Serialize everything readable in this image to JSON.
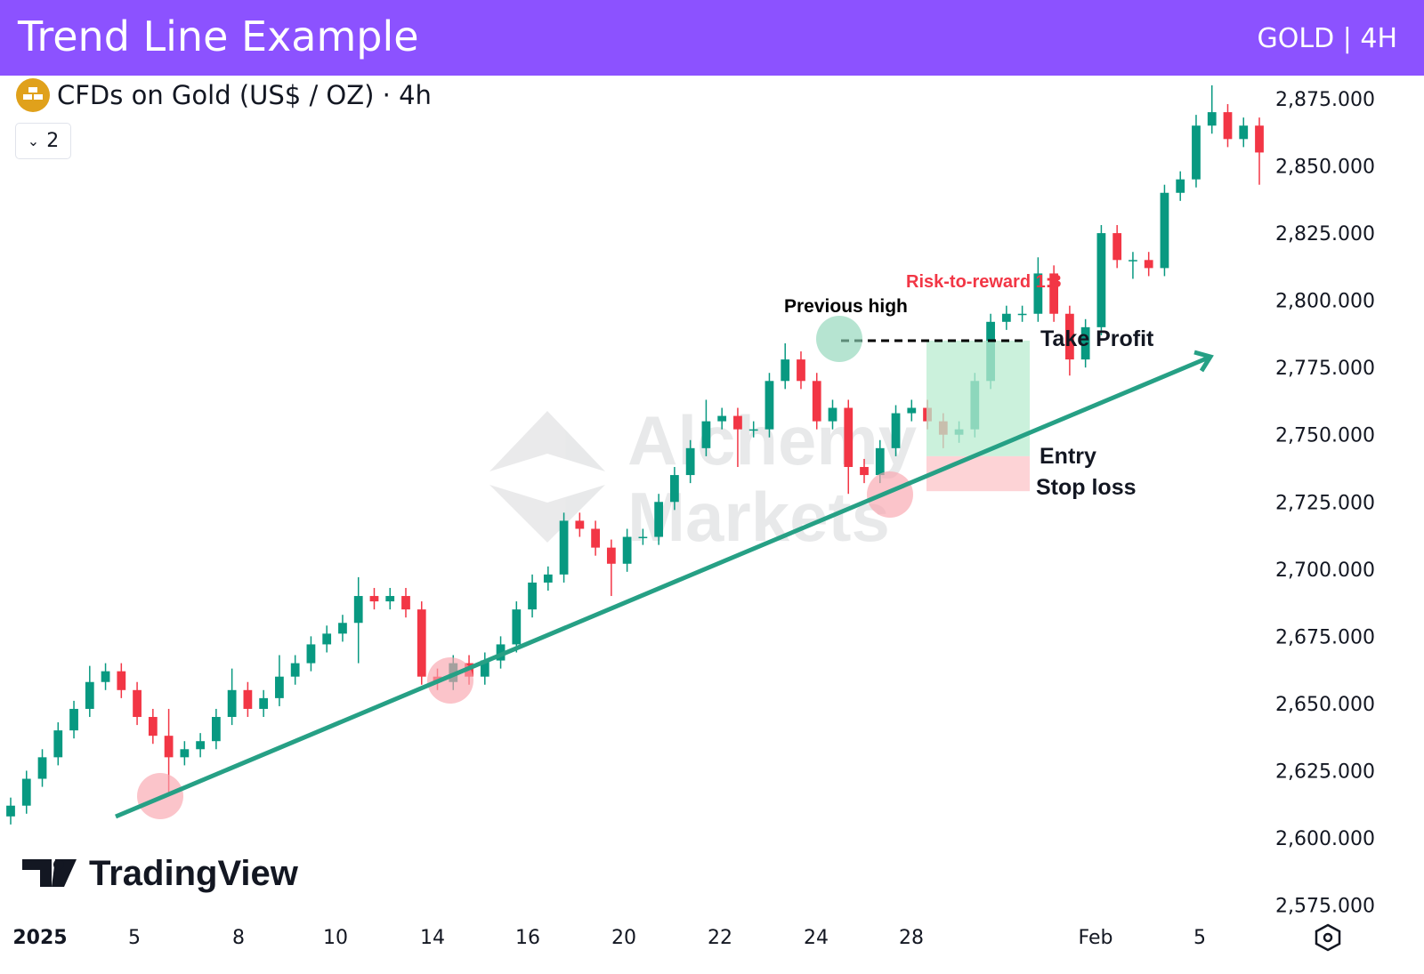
{
  "header": {
    "title": "Trend Line Example",
    "tag": "GOLD | 4H"
  },
  "symbol": {
    "name": "CFDs on Gold (US$ / OZ) · 4h",
    "collapse_count": "2"
  },
  "logo": {
    "text": "TradingView"
  },
  "watermark": {
    "line1": "Alchemy",
    "line2": "Markets"
  },
  "annotations": {
    "previous_high": "Previous high",
    "risk_reward": "Risk-to-reward 1:3",
    "take_profit": "Take Profit",
    "entry": "Entry",
    "stop_loss": "Stop loss"
  },
  "colors": {
    "up": "#089981",
    "down": "#f23645",
    "trendline": "#26a085",
    "header": "#8c52ff",
    "risk_reward_text": "#f23645"
  },
  "chart_data": {
    "type": "candlestick",
    "title": "CFDs on Gold (US$ / OZ) · 4h",
    "ylim": [
      2575,
      2885
    ],
    "y_ticks": [
      "2,875.000",
      "2,850.000",
      "2,825.000",
      "2,800.000",
      "2,775.000",
      "2,750.000",
      "2,725.000",
      "2,700.000",
      "2,675.000",
      "2,650.000",
      "2,625.000",
      "2,600.000",
      "2,575.000"
    ],
    "y_tick_values": [
      2875,
      2850,
      2825,
      2800,
      2775,
      2750,
      2725,
      2700,
      2675,
      2650,
      2625,
      2600,
      2575
    ],
    "x_ticks": [
      "2025",
      "5",
      "8",
      "10",
      "14",
      "16",
      "20",
      "22",
      "24",
      "28",
      "Feb",
      "5"
    ],
    "ohlc": [
      [
        2608,
        2615,
        2605,
        2612
      ],
      [
        2612,
        2625,
        2609,
        2622
      ],
      [
        2622,
        2633,
        2619,
        2630
      ],
      [
        2630,
        2643,
        2627,
        2640
      ],
      [
        2640,
        2651,
        2637,
        2648
      ],
      [
        2648,
        2664,
        2645,
        2658
      ],
      [
        2658,
        2665,
        2655,
        2662
      ],
      [
        2662,
        2665,
        2652,
        2655
      ],
      [
        2655,
        2658,
        2642,
        2645
      ],
      [
        2645,
        2648,
        2635,
        2638
      ],
      [
        2638,
        2648,
        2616,
        2630
      ],
      [
        2630,
        2636,
        2627,
        2633
      ],
      [
        2633,
        2639,
        2630,
        2636
      ],
      [
        2636,
        2648,
        2633,
        2645
      ],
      [
        2645,
        2663,
        2642,
        2655
      ],
      [
        2655,
        2658,
        2645,
        2648
      ],
      [
        2648,
        2655,
        2645,
        2652
      ],
      [
        2652,
        2668,
        2649,
        2660
      ],
      [
        2660,
        2668,
        2657,
        2665
      ],
      [
        2665,
        2675,
        2662,
        2672
      ],
      [
        2672,
        2679,
        2669,
        2676
      ],
      [
        2676,
        2683,
        2673,
        2680
      ],
      [
        2680,
        2697,
        2665,
        2690
      ],
      [
        2690,
        2693,
        2685,
        2688
      ],
      [
        2688,
        2693,
        2685,
        2690
      ],
      [
        2690,
        2693,
        2682,
        2685
      ],
      [
        2685,
        2688,
        2657,
        2660
      ],
      [
        2660,
        2663,
        2655,
        2658
      ],
      [
        2658,
        2668,
        2655,
        2665
      ],
      [
        2665,
        2668,
        2657,
        2660
      ],
      [
        2660,
        2669,
        2657,
        2666
      ],
      [
        2666,
        2675,
        2663,
        2672
      ],
      [
        2672,
        2688,
        2669,
        2685
      ],
      [
        2685,
        2698,
        2682,
        2695
      ],
      [
        2695,
        2701,
        2692,
        2698
      ],
      [
        2698,
        2721,
        2695,
        2718
      ],
      [
        2718,
        2721,
        2712,
        2715
      ],
      [
        2715,
        2718,
        2705,
        2708
      ],
      [
        2708,
        2711,
        2690,
        2702
      ],
      [
        2702,
        2715,
        2699,
        2712
      ],
      [
        2712,
        2715,
        2709,
        2712
      ],
      [
        2712,
        2728,
        2709,
        2725
      ],
      [
        2725,
        2738,
        2722,
        2735
      ],
      [
        2735,
        2748,
        2732,
        2745
      ],
      [
        2745,
        2763,
        2742,
        2755
      ],
      [
        2755,
        2760,
        2752,
        2757
      ],
      [
        2757,
        2760,
        2738,
        2752
      ],
      [
        2752,
        2755,
        2749,
        2752
      ],
      [
        2752,
        2773,
        2749,
        2770
      ],
      [
        2770,
        2784,
        2767,
        2778
      ],
      [
        2778,
        2781,
        2767,
        2770
      ],
      [
        2770,
        2773,
        2752,
        2755
      ],
      [
        2755,
        2763,
        2752,
        2760
      ],
      [
        2760,
        2763,
        2728,
        2738
      ],
      [
        2738,
        2741,
        2732,
        2735
      ],
      [
        2735,
        2748,
        2732,
        2745
      ],
      [
        2745,
        2761,
        2742,
        2758
      ],
      [
        2758,
        2763,
        2755,
        2760
      ],
      [
        2760,
        2763,
        2752,
        2755
      ],
      [
        2755,
        2758,
        2745,
        2750
      ],
      [
        2750,
        2755,
        2747,
        2752
      ],
      [
        2752,
        2773,
        2749,
        2770
      ],
      [
        2770,
        2795,
        2767,
        2792
      ],
      [
        2792,
        2798,
        2789,
        2795
      ],
      [
        2795,
        2798,
        2792,
        2795
      ],
      [
        2795,
        2816,
        2792,
        2810
      ],
      [
        2810,
        2813,
        2792,
        2795
      ],
      [
        2795,
        2798,
        2772,
        2778
      ],
      [
        2778,
        2793,
        2775,
        2790
      ],
      [
        2790,
        2828,
        2787,
        2825
      ],
      [
        2825,
        2828,
        2812,
        2815
      ],
      [
        2815,
        2818,
        2808,
        2815
      ],
      [
        2815,
        2818,
        2809,
        2812
      ],
      [
        2812,
        2843,
        2809,
        2840
      ],
      [
        2840,
        2848,
        2837,
        2845
      ],
      [
        2845,
        2869,
        2842,
        2865
      ],
      [
        2865,
        2880,
        2862,
        2870
      ],
      [
        2870,
        2873,
        2857,
        2860
      ],
      [
        2860,
        2868,
        2857,
        2865
      ],
      [
        2865,
        2868,
        2843,
        2855
      ]
    ],
    "trade_setup": {
      "entry": 2742,
      "stop_loss": 2729,
      "take_profit": 2785
    }
  }
}
